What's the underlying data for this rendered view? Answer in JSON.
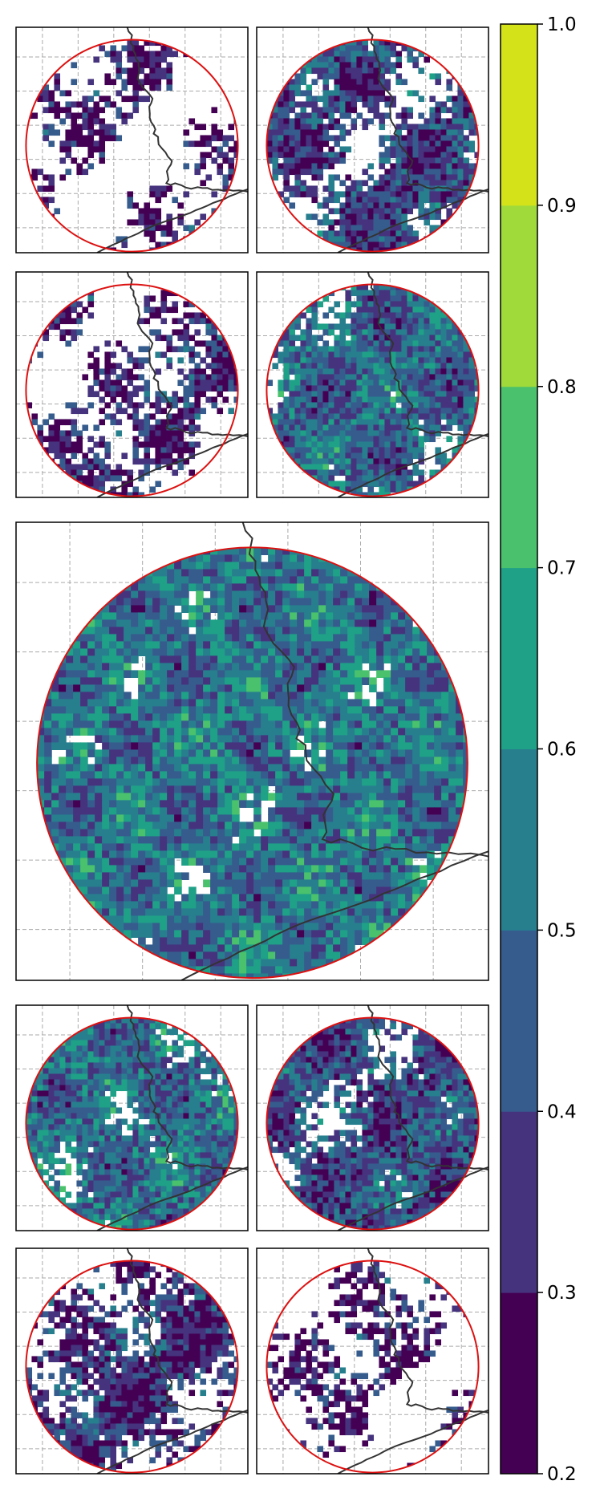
{
  "chart_data": {
    "type": "heatmap",
    "description_free": true,
    "colorbar": {
      "ticks": [
        "0.2",
        "0.3",
        "0.4",
        "0.5",
        "0.6",
        "0.7",
        "0.8",
        "0.9",
        "1.0"
      ],
      "levels": [
        0.2,
        0.3,
        0.4,
        0.5,
        0.6,
        0.7,
        0.8,
        0.9,
        1.0
      ],
      "colors": [
        "#440154",
        "#46337e",
        "#365c8d",
        "#277f8e",
        "#1fa187",
        "#4ac16d",
        "#9fda3a",
        "#d4e21a"
      ],
      "range": [
        0.2,
        1.0
      ]
    },
    "panels": [
      {
        "id": "top-left",
        "coverage": 0.3,
        "mean": 0.33
      },
      {
        "id": "top-right",
        "coverage": 0.62,
        "mean": 0.4
      },
      {
        "id": "second-left",
        "coverage": 0.4,
        "mean": 0.35
      },
      {
        "id": "second-right",
        "coverage": 0.8,
        "mean": 0.48
      },
      {
        "id": "center-large",
        "coverage": 0.94,
        "mean": 0.52
      },
      {
        "id": "fourth-left",
        "coverage": 0.82,
        "mean": 0.5
      },
      {
        "id": "fourth-right",
        "coverage": 0.72,
        "mean": 0.42
      },
      {
        "id": "bottom-left",
        "coverage": 0.55,
        "mean": 0.36
      },
      {
        "id": "bottom-right",
        "coverage": 0.3,
        "mean": 0.32
      }
    ],
    "grid": true,
    "circle_color": "#dd1111",
    "coast_color": "#333333",
    "grid_color": "#aaaaaa"
  }
}
